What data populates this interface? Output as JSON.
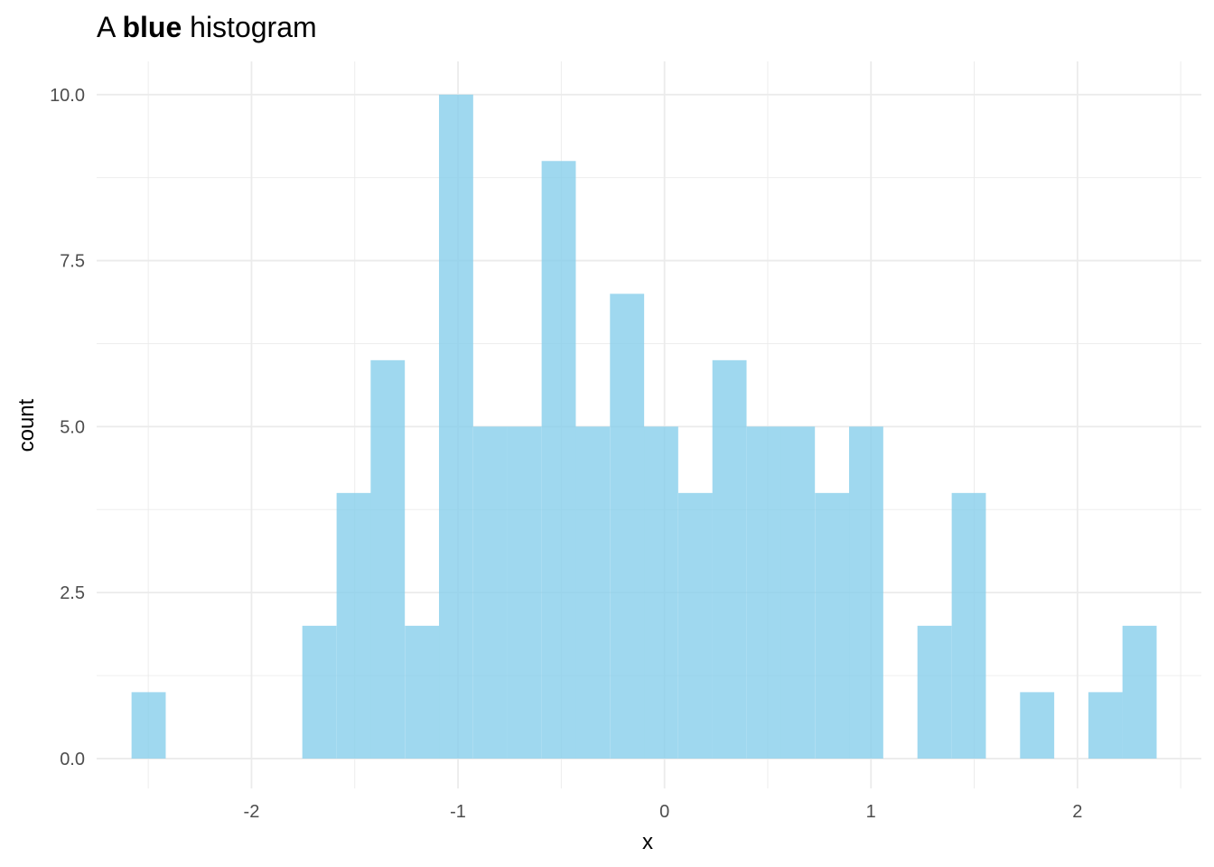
{
  "chart_data": {
    "type": "bar",
    "title_parts": [
      "A ",
      "blue",
      " histogram"
    ],
    "xlabel": "x",
    "ylabel": "count",
    "bar_color": "#87ceeb",
    "bar_opacity": 0.8,
    "grid": true,
    "grid_color": "#ebebeb",
    "xlim": [
      -2.75,
      2.6
    ],
    "ylim": [
      -0.45,
      10.5
    ],
    "x_ticks": [
      -2,
      -1,
      0,
      1,
      2
    ],
    "x_tick_labels": [
      "-2",
      "-1",
      "0",
      "1",
      "2"
    ],
    "x_minor_ticks": [
      -2.5,
      -1.5,
      -0.5,
      0.5,
      1.5,
      2.5
    ],
    "y_ticks": [
      0,
      2.5,
      5,
      7.5,
      10
    ],
    "y_tick_labels": [
      "0.0",
      "2.5",
      "5.0",
      "7.5",
      "10.0"
    ],
    "y_minor_ticks": [
      1.25,
      3.75,
      6.25,
      8.75
    ],
    "bin_width": 0.1655,
    "bins": [
      {
        "x0": -2.581,
        "count": 1
      },
      {
        "x0": -2.416,
        "count": 0
      },
      {
        "x0": -2.25,
        "count": 0
      },
      {
        "x0": -2.085,
        "count": 0
      },
      {
        "x0": -1.919,
        "count": 0
      },
      {
        "x0": -1.754,
        "count": 2
      },
      {
        "x0": -1.588,
        "count": 4
      },
      {
        "x0": -1.423,
        "count": 6
      },
      {
        "x0": -1.257,
        "count": 2
      },
      {
        "x0": -1.092,
        "count": 10
      },
      {
        "x0": -0.926,
        "count": 5
      },
      {
        "x0": -0.761,
        "count": 5
      },
      {
        "x0": -0.595,
        "count": 9
      },
      {
        "x0": -0.43,
        "count": 5
      },
      {
        "x0": -0.264,
        "count": 7
      },
      {
        "x0": -0.099,
        "count": 5
      },
      {
        "x0": 0.067,
        "count": 4
      },
      {
        "x0": 0.232,
        "count": 6
      },
      {
        "x0": 0.398,
        "count": 5
      },
      {
        "x0": 0.563,
        "count": 5
      },
      {
        "x0": 0.729,
        "count": 4
      },
      {
        "x0": 0.894,
        "count": 5
      },
      {
        "x0": 1.06,
        "count": 0
      },
      {
        "x0": 1.225,
        "count": 2
      },
      {
        "x0": 1.391,
        "count": 4
      },
      {
        "x0": 1.556,
        "count": 0
      },
      {
        "x0": 1.722,
        "count": 1
      },
      {
        "x0": 1.887,
        "count": 0
      },
      {
        "x0": 2.053,
        "count": 1
      },
      {
        "x0": 2.218,
        "count": 2
      }
    ]
  }
}
